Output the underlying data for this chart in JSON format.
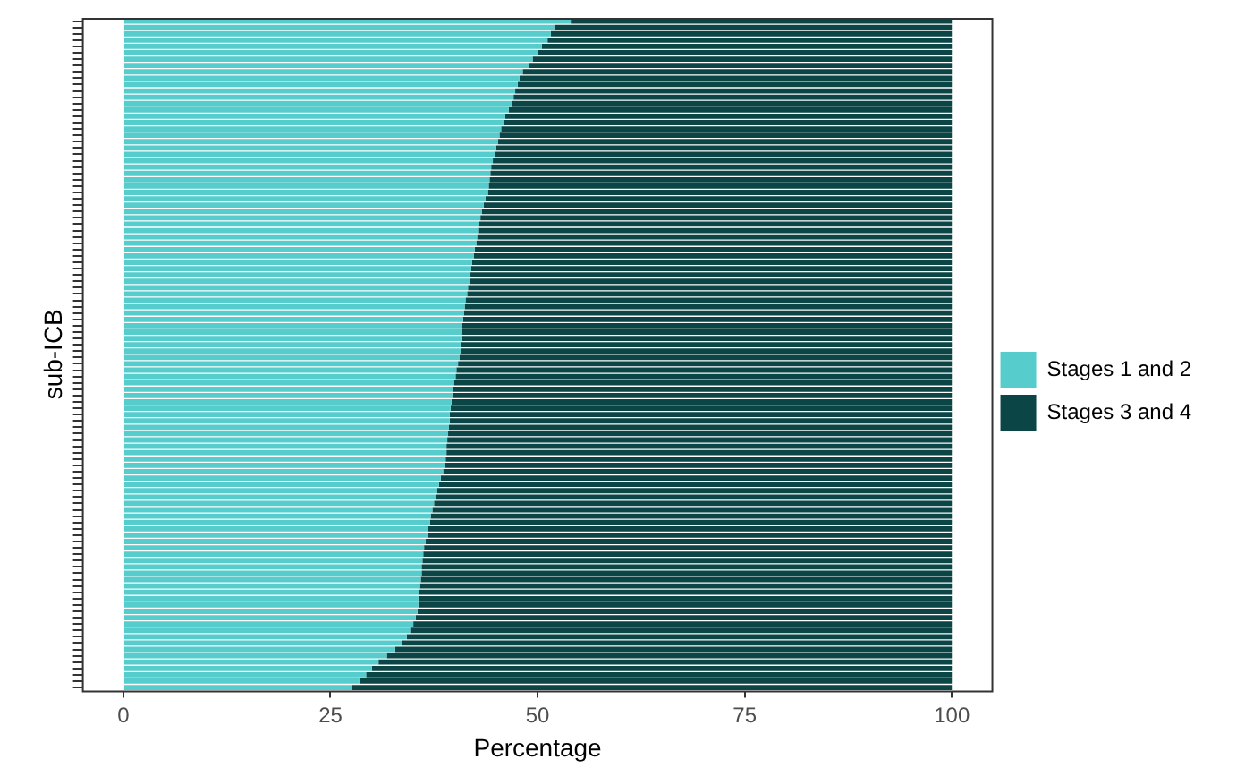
{
  "chart_data": {
    "type": "bar",
    "orientation": "horizontal",
    "stacked": true,
    "xlabel": "Percentage",
    "ylabel": "sub-ICB",
    "xlim": [
      -5,
      105
    ],
    "xticks": [
      0,
      25,
      50,
      75,
      100
    ],
    "grid": false,
    "legend": "right",
    "categories": [
      null,
      null,
      null,
      null,
      null,
      null,
      null,
      null,
      null,
      null,
      null,
      null,
      null,
      null,
      null,
      null,
      null,
      null,
      null,
      null,
      null,
      null,
      null,
      null,
      null,
      null,
      null,
      null,
      null,
      null,
      null,
      null,
      null,
      null,
      null,
      null,
      null,
      null,
      null,
      null,
      null,
      null,
      null,
      null,
      null,
      null,
      null,
      null,
      null,
      null,
      null,
      null,
      null,
      null,
      null,
      null,
      null,
      null,
      null,
      null,
      null,
      null,
      null,
      null,
      null,
      null,
      null,
      null,
      null,
      null,
      null,
      null,
      null,
      null,
      null,
      null,
      null,
      null,
      null,
      null,
      null,
      null,
      null,
      null,
      null,
      null,
      null,
      null,
      null,
      null,
      null,
      null,
      null,
      null,
      null,
      null,
      null,
      null,
      null,
      null,
      null,
      null,
      null,
      null,
      null,
      null
    ],
    "series": [
      {
        "name": "Stages 1 and 2",
        "color": "#56cccc",
        "values": [
          54.0,
          52.0,
          51.6,
          51.2,
          50.5,
          50.0,
          49.4,
          49.0,
          48.2,
          47.8,
          47.6,
          47.3,
          47.1,
          46.9,
          46.5,
          46.1,
          45.9,
          45.6,
          45.4,
          45.2,
          45.0,
          44.8,
          44.6,
          44.4,
          44.3,
          44.2,
          44.1,
          44.0,
          43.7,
          43.5,
          43.3,
          43.1,
          42.9,
          42.8,
          42.7,
          42.6,
          42.4,
          42.3,
          42.1,
          42.0,
          41.9,
          41.8,
          41.6,
          41.5,
          41.3,
          41.2,
          41.1,
          41.0,
          40.9,
          40.9,
          40.8,
          40.7,
          40.7,
          40.6,
          40.4,
          40.2,
          40.1,
          39.9,
          39.8,
          39.7,
          39.6,
          39.5,
          39.4,
          39.4,
          39.3,
          39.2,
          39.1,
          39.0,
          39.0,
          38.9,
          38.8,
          38.6,
          38.3,
          38.1,
          37.9,
          37.7,
          37.5,
          37.3,
          37.1,
          37.0,
          36.8,
          36.7,
          36.5,
          36.3,
          36.2,
          36.1,
          36.0,
          36.0,
          35.9,
          35.8,
          35.7,
          35.6,
          35.6,
          35.5,
          35.3,
          35.0,
          34.6,
          34.2,
          33.6,
          32.8,
          31.8,
          30.8,
          30.0,
          29.3,
          28.5,
          27.6
        ]
      },
      {
        "name": "Stages 3 and 4",
        "color": "#0b4545",
        "values": [
          46.0,
          48.0,
          48.4,
          48.8,
          49.5,
          50.0,
          50.6,
          51.0,
          51.8,
          52.2,
          52.4,
          52.7,
          52.9,
          53.1,
          53.5,
          53.9,
          54.1,
          54.4,
          54.6,
          54.8,
          55.0,
          55.2,
          55.4,
          55.6,
          55.7,
          55.8,
          55.9,
          56.0,
          56.3,
          56.5,
          56.7,
          56.9,
          57.1,
          57.2,
          57.3,
          57.4,
          57.6,
          57.7,
          57.9,
          58.0,
          58.1,
          58.2,
          58.4,
          58.5,
          58.7,
          58.8,
          58.9,
          59.0,
          59.1,
          59.1,
          59.2,
          59.3,
          59.3,
          59.4,
          59.6,
          59.8,
          59.9,
          60.1,
          60.2,
          60.3,
          60.4,
          60.5,
          60.6,
          60.6,
          60.7,
          60.8,
          60.9,
          61.0,
          61.0,
          61.1,
          61.2,
          61.4,
          61.7,
          61.9,
          62.1,
          62.3,
          62.5,
          62.7,
          62.9,
          63.0,
          63.2,
          63.3,
          63.5,
          63.7,
          63.8,
          63.9,
          64.0,
          64.0,
          64.1,
          64.2,
          64.3,
          64.4,
          64.4,
          64.5,
          64.7,
          65.0,
          65.4,
          65.8,
          66.4,
          67.2,
          68.2,
          69.2,
          70.0,
          70.7,
          71.5,
          72.4
        ]
      }
    ]
  }
}
